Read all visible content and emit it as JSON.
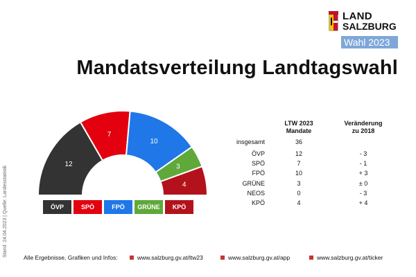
{
  "header": {
    "logo_line1": "LAND",
    "logo_line2": "SALZBURG",
    "logo_wahl": "Wahl 2023",
    "title": "Mandatsverteilung Landtagswahl"
  },
  "side_note": "Stand: 24.04.2023 | Quelle: Landesstatistik",
  "chart_data": {
    "type": "pie",
    "subtype": "half-donut (parliament seats)",
    "total_seats": 36,
    "slices": [
      {
        "label": "ÖVP",
        "value": 12,
        "color": "#333333"
      },
      {
        "label": "SPÖ",
        "value": 7,
        "color": "#e3000f"
      },
      {
        "label": "FPÖ",
        "value": 10,
        "color": "#1f77e8"
      },
      {
        "label": "GRÜNE",
        "value": 3,
        "color": "#5fa83a"
      },
      {
        "label": "KPÖ",
        "value": 4,
        "color": "#b3121c"
      }
    ],
    "legend_position": "bottom"
  },
  "table": {
    "header_mandate": [
      "LTW 2023",
      "Mandate"
    ],
    "header_change": [
      "Veränderung",
      "zu 2018"
    ],
    "total_label": "insgesamt",
    "total_value": "36",
    "rows": [
      {
        "party": "ÖVP",
        "mandate": "12",
        "change": "- 3"
      },
      {
        "party": "SPÖ",
        "mandate": "7",
        "change": "- 1"
      },
      {
        "party": "FPÖ",
        "mandate": "10",
        "change": "+ 3"
      },
      {
        "party": "GRÜNE",
        "mandate": "3",
        "change": "± 0"
      },
      {
        "party": "NEOS",
        "mandate": "0",
        "change": "- 3"
      },
      {
        "party": "KPÖ",
        "mandate": "4",
        "change": "+ 4"
      }
    ]
  },
  "footer": {
    "intro": "Alle Ergebnisse, Grafiken und Infos:",
    "links": [
      "www.salzburg.gv.at/ltw23",
      "www.salzburg.gv.at/app",
      "www.salzburg.gv.at/ticker"
    ],
    "link_marker_color": "#c0392b"
  }
}
